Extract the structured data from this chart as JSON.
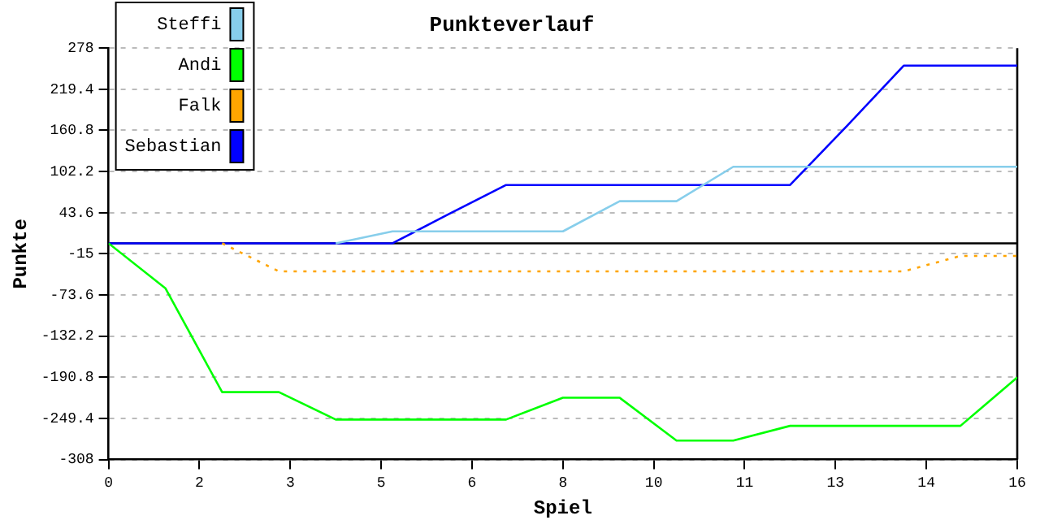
{
  "chart_data": {
    "type": "line",
    "title": "Punkteverlauf",
    "xlabel": "Spiel",
    "ylabel": "Punkte",
    "x": [
      0,
      1,
      2,
      3,
      4,
      5,
      6,
      7,
      8,
      9,
      10,
      11,
      12,
      13,
      14,
      15,
      16
    ],
    "xlim": [
      0,
      16
    ],
    "xticks": [
      0,
      {
        "value": 1.6,
        "label": "2"
      },
      {
        "value": 3.2,
        "label": "3"
      },
      {
        "value": 4.8,
        "label": "5"
      },
      {
        "value": 6.4,
        "label": "6"
      },
      8,
      {
        "value": 9.6,
        "label": "10"
      },
      {
        "value": 11.2,
        "label": "11"
      },
      {
        "value": 12.8,
        "label": "13"
      },
      {
        "value": 14.4,
        "label": "14"
      },
      16
    ],
    "ylim": [
      -308,
      278
    ],
    "yticks": [
      -308,
      -249.4,
      -190.8,
      -132.2,
      -73.6,
      -15,
      43.6,
      102.2,
      160.8,
      219.4,
      278
    ],
    "series": [
      {
        "name": "Steffi",
        "color": "#87ceeb",
        "values": [
          null,
          null,
          null,
          null,
          0,
          17,
          17,
          17,
          17,
          60,
          60,
          109,
          109,
          109,
          109,
          109,
          109
        ]
      },
      {
        "name": "Andi",
        "color": "#00ff00",
        "values": [
          0,
          -64,
          -212,
          -212,
          -251,
          -251,
          -251,
          -251,
          -220,
          -220,
          -281,
          -281,
          -260,
          -260,
          -260,
          -260,
          -191
        ]
      },
      {
        "name": "Falk",
        "color": "#ffa500",
        "line_style": "dotted",
        "values": [
          null,
          null,
          0,
          -40,
          -40,
          -40,
          -40,
          -40,
          -40,
          -40,
          -40,
          -40,
          -40,
          -40,
          -40,
          -18,
          -18
        ]
      },
      {
        "name": "Sebastian",
        "color": "#0000ff",
        "values": [
          0,
          0,
          0,
          0,
          0,
          0,
          42,
          83,
          83,
          83,
          83,
          83,
          83,
          167,
          253,
          253,
          253
        ]
      }
    ],
    "ref_lines": [
      {
        "axis": "y",
        "value": 0,
        "color": "#000000"
      }
    ],
    "grid": "y",
    "legend": "top left",
    "marker": "none"
  }
}
